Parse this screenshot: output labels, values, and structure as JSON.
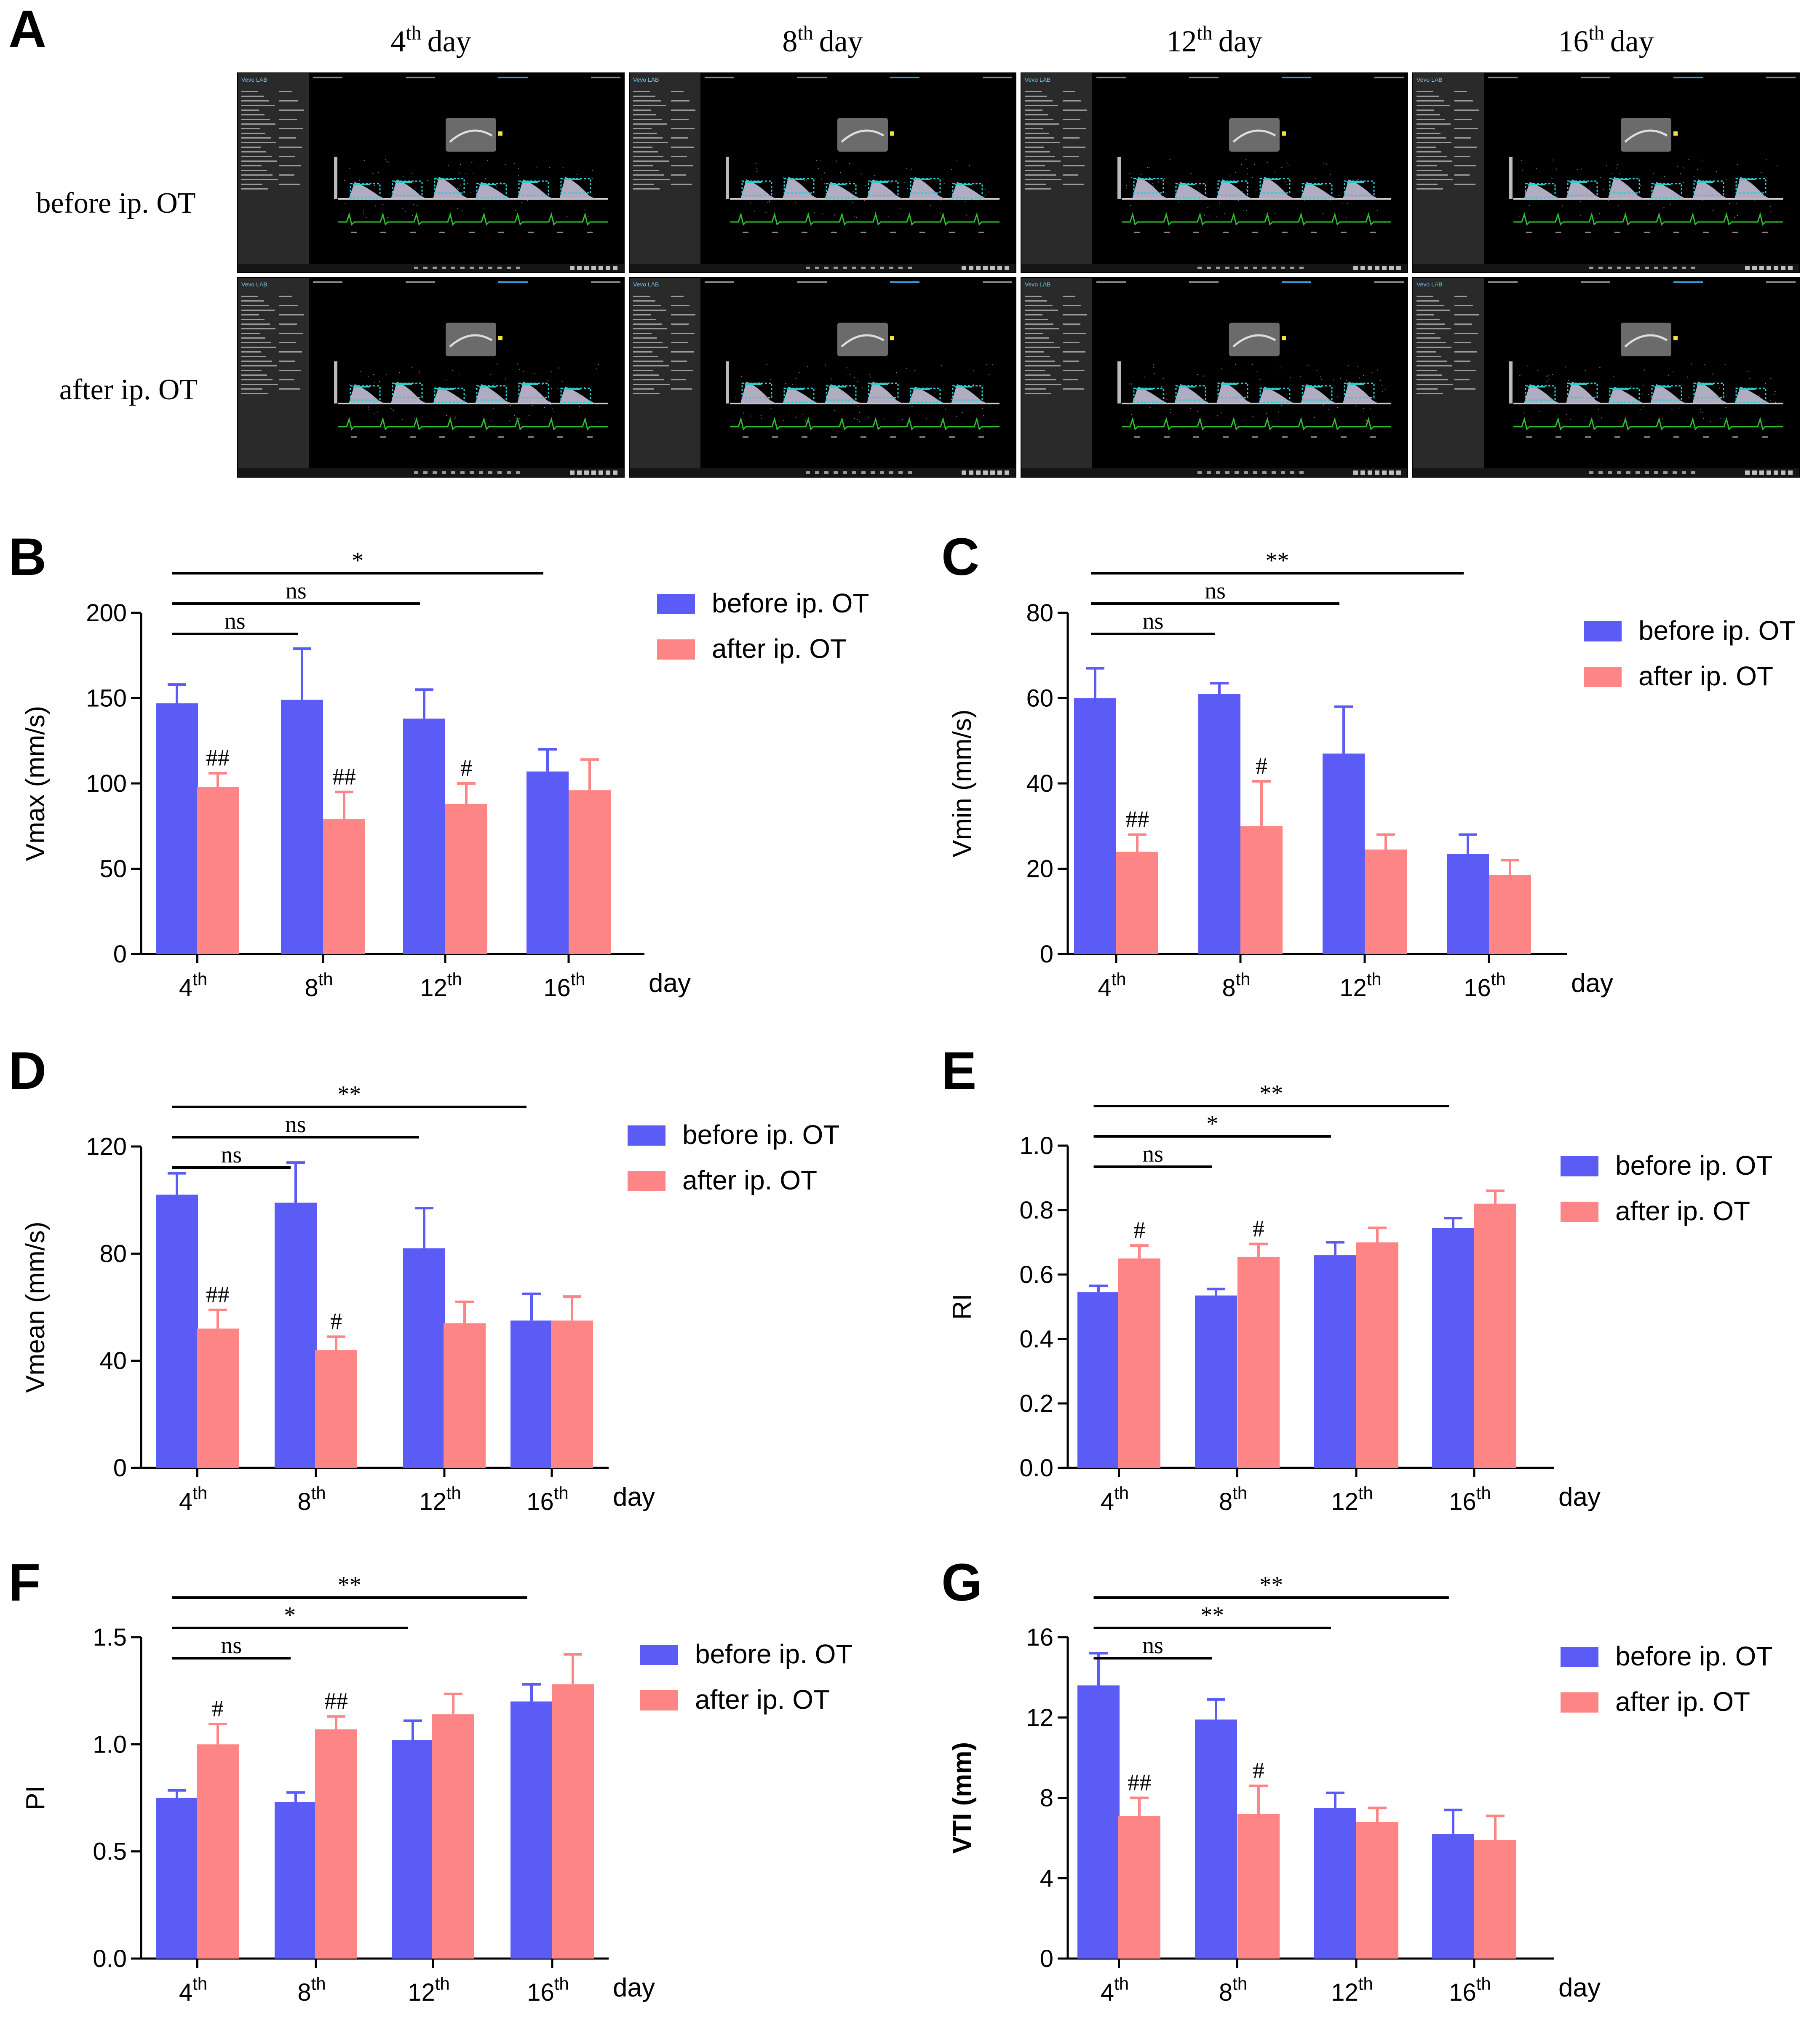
{
  "figure": {
    "panel_letters": [
      "A",
      "B",
      "C",
      "D",
      "E",
      "F",
      "G"
    ],
    "legend": [
      "before ip. OT",
      "after ip. OT"
    ],
    "colors": {
      "before": "#5b5bf5",
      "after": "#fd8585",
      "ui_bg": "#000000",
      "ui_sidebar": "#2a2a2a",
      "waveform": "#23d0d0",
      "ecg": "#2fc02f"
    }
  },
  "panel_a": {
    "columns": [
      {
        "num": "4",
        "sup": "th",
        "word": "day"
      },
      {
        "num": "8",
        "sup": "th",
        "word": "day"
      },
      {
        "num": "12",
        "sup": "th",
        "word": "day"
      },
      {
        "num": "16",
        "sup": "th",
        "word": "day"
      }
    ],
    "rows": [
      "before ip. OT",
      "after ip. OT"
    ],
    "ui_logo": "Vevo LAB",
    "image_icons": [
      "ultrasound-screenshot"
    ]
  },
  "chart_data": [
    {
      "panel": "B",
      "type": "bar",
      "categories": [
        {
          "num": "4",
          "sup": "th"
        },
        {
          "num": "8",
          "sup": "th"
        },
        {
          "num": "12",
          "sup": "th"
        },
        {
          "num": "16",
          "sup": "th"
        }
      ],
      "xlabel": "day",
      "ylabel": "Vmax (mm/s)",
      "ylim": [
        0,
        200
      ],
      "yticks": [
        "0",
        "50",
        "100",
        "150",
        "200"
      ],
      "series": [
        {
          "name": "before ip. OT",
          "values": [
            147,
            149,
            138,
            107
          ],
          "errors": [
            11,
            30,
            17,
            13
          ],
          "marks": [
            "",
            "",
            "",
            ""
          ]
        },
        {
          "name": "after ip. OT",
          "values": [
            98,
            79,
            88,
            96
          ],
          "errors": [
            8,
            16,
            12,
            18
          ],
          "marks": [
            "##",
            "##",
            "#",
            ""
          ]
        }
      ],
      "brackets": [
        {
          "to": 1,
          "label": "ns"
        },
        {
          "to": 2,
          "label": "ns"
        },
        {
          "to": 3,
          "label": "*"
        }
      ]
    },
    {
      "panel": "C",
      "type": "bar",
      "categories": [
        {
          "num": "4",
          "sup": "th"
        },
        {
          "num": "8",
          "sup": "th"
        },
        {
          "num": "12",
          "sup": "th"
        },
        {
          "num": "16",
          "sup": "th"
        }
      ],
      "xlabel": "day",
      "ylabel": "Vmin (mm/s)",
      "ylim": [
        0,
        80
      ],
      "yticks": [
        "0",
        "20",
        "40",
        "60",
        "80"
      ],
      "series": [
        {
          "name": "before ip. OT",
          "values": [
            60,
            61,
            47,
            23.5
          ],
          "errors": [
            7,
            2.5,
            11,
            4.5
          ],
          "marks": [
            "",
            "",
            "",
            ""
          ]
        },
        {
          "name": "after ip. OT",
          "values": [
            24,
            30,
            24.5,
            18.5
          ],
          "errors": [
            4,
            10.5,
            3.5,
            3.5
          ],
          "marks": [
            "##",
            "#",
            "",
            ""
          ]
        }
      ],
      "brackets": [
        {
          "to": 1,
          "label": "ns"
        },
        {
          "to": 2,
          "label": "ns"
        },
        {
          "to": 3,
          "label": "**"
        }
      ]
    },
    {
      "panel": "D",
      "type": "bar",
      "categories": [
        {
          "num": "4",
          "sup": "th"
        },
        {
          "num": "8",
          "sup": "th"
        },
        {
          "num": "12",
          "sup": "th"
        },
        {
          "num": "16",
          "sup": "th"
        }
      ],
      "xlabel": "day",
      "ylabel": "Vmean (mm/s)",
      "ylim": [
        0,
        120
      ],
      "yticks": [
        "0",
        "40",
        "80",
        "120"
      ],
      "series": [
        {
          "name": "before ip. OT",
          "values": [
            102,
            99,
            82,
            55
          ],
          "errors": [
            8,
            15,
            15,
            10
          ],
          "marks": [
            "",
            "",
            "",
            ""
          ]
        },
        {
          "name": "after ip. OT",
          "values": [
            52,
            44,
            54,
            55
          ],
          "errors": [
            7,
            5,
            8,
            9
          ],
          "marks": [
            "##",
            "#",
            "",
            ""
          ]
        }
      ],
      "brackets": [
        {
          "to": 1,
          "label": "ns"
        },
        {
          "to": 2,
          "label": "ns"
        },
        {
          "to": 3,
          "label": "**"
        }
      ]
    },
    {
      "panel": "E",
      "type": "bar",
      "categories": [
        {
          "num": "4",
          "sup": "th"
        },
        {
          "num": "8",
          "sup": "th"
        },
        {
          "num": "12",
          "sup": "th"
        },
        {
          "num": "16",
          "sup": "th"
        }
      ],
      "xlabel": "day",
      "ylabel": "RI",
      "ylim": [
        0,
        1.0
      ],
      "yticks": [
        "0.0",
        "0.2",
        "0.4",
        "0.6",
        "0.8",
        "1.0"
      ],
      "series": [
        {
          "name": "before ip. OT",
          "values": [
            0.545,
            0.535,
            0.66,
            0.745
          ],
          "errors": [
            0.02,
            0.02,
            0.04,
            0.03
          ],
          "marks": [
            "",
            "",
            "",
            ""
          ]
        },
        {
          "name": "after ip. OT",
          "values": [
            0.65,
            0.655,
            0.7,
            0.82
          ],
          "errors": [
            0.04,
            0.04,
            0.045,
            0.04
          ],
          "marks": [
            "#",
            "#",
            "",
            ""
          ]
        }
      ],
      "brackets": [
        {
          "to": 1,
          "label": "ns"
        },
        {
          "to": 2,
          "label": "*"
        },
        {
          "to": 3,
          "label": "**"
        }
      ]
    },
    {
      "panel": "F",
      "type": "bar",
      "categories": [
        {
          "num": "4",
          "sup": "th"
        },
        {
          "num": "8",
          "sup": "th"
        },
        {
          "num": "12",
          "sup": "th"
        },
        {
          "num": "16",
          "sup": "th"
        }
      ],
      "xlabel": "day",
      "ylabel": "PI",
      "ylim": [
        0,
        1.5
      ],
      "yticks": [
        "0.0",
        "0.5",
        "1.0",
        "1.5"
      ],
      "series": [
        {
          "name": "before ip. OT",
          "values": [
            0.75,
            0.73,
            1.02,
            1.2
          ],
          "errors": [
            0.035,
            0.045,
            0.09,
            0.08
          ],
          "marks": [
            "",
            "",
            "",
            ""
          ]
        },
        {
          "name": "after ip. OT",
          "values": [
            1.0,
            1.07,
            1.14,
            1.28
          ],
          "errors": [
            0.095,
            0.06,
            0.095,
            0.14
          ],
          "marks": [
            "#",
            "##",
            "",
            ""
          ]
        }
      ],
      "brackets": [
        {
          "to": 1,
          "label": "ns"
        },
        {
          "to": 2,
          "label": "*"
        },
        {
          "to": 3,
          "label": "**"
        }
      ]
    },
    {
      "panel": "G",
      "type": "bar",
      "categories": [
        {
          "num": "4",
          "sup": "th"
        },
        {
          "num": "8",
          "sup": "th"
        },
        {
          "num": "12",
          "sup": "th"
        },
        {
          "num": "16",
          "sup": "th"
        }
      ],
      "xlabel": "day",
      "ylabel": "VTI (mm)",
      "ylim": [
        0,
        16
      ],
      "yticks": [
        "0",
        "4",
        "8",
        "12",
        "16"
      ],
      "series": [
        {
          "name": "before ip. OT",
          "values": [
            13.6,
            11.9,
            7.5,
            6.2
          ],
          "errors": [
            1.6,
            1.0,
            0.75,
            1.2
          ],
          "marks": [
            "",
            "",
            "",
            ""
          ]
        },
        {
          "name": "after ip. OT",
          "values": [
            7.1,
            7.2,
            6.8,
            5.9
          ],
          "errors": [
            0.9,
            1.4,
            0.7,
            1.2
          ],
          "marks": [
            "##",
            "#",
            "",
            ""
          ]
        }
      ],
      "brackets": [
        {
          "to": 1,
          "label": "ns"
        },
        {
          "to": 2,
          "label": "**"
        },
        {
          "to": 3,
          "label": "**"
        }
      ]
    }
  ]
}
